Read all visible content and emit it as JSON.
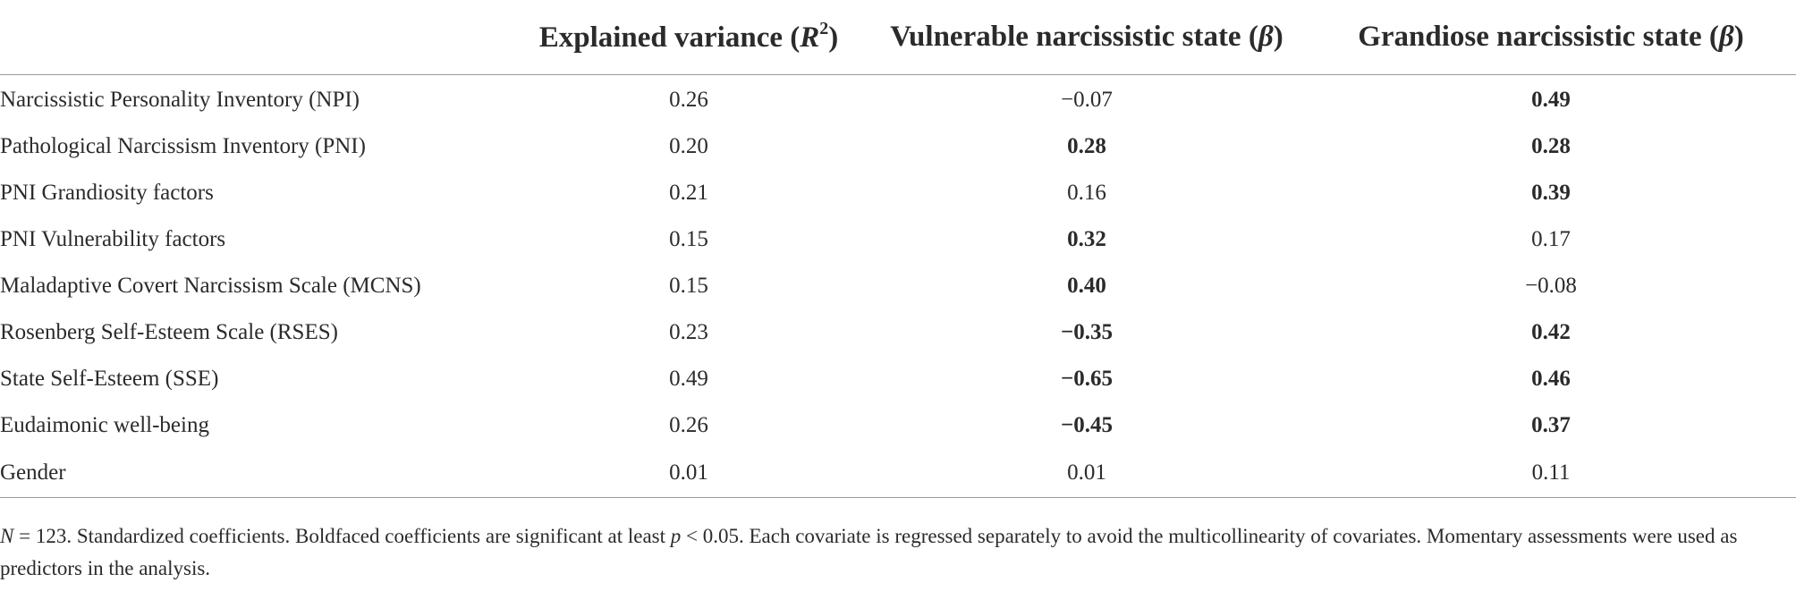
{
  "table": {
    "headers": {
      "col0": "",
      "col1_text": "Explained variance (",
      "col1_symbol": "R",
      "col1_sup": "2",
      "col1_close": ")",
      "col2_text": "Vulnerable narcissistic state (",
      "col2_symbol": "β",
      "col2_close": ")",
      "col3_text": "Grandiose narcissistic state (",
      "col3_symbol": "β",
      "col3_close": ")"
    },
    "rows": [
      {
        "label": "Narcissistic Personality Inventory (NPI)",
        "r2": "0.26",
        "vulnerable": "−0.07",
        "grandiose": "0.49"
      },
      {
        "label": "Pathological Narcissism Inventory (PNI)",
        "r2": "0.20",
        "vulnerable": "0.28",
        "grandiose": "0.28"
      },
      {
        "label": "PNI Grandiosity factors",
        "r2": "0.21",
        "vulnerable": "0.16",
        "grandiose": "0.39"
      },
      {
        "label": "PNI Vulnerability factors",
        "r2": "0.15",
        "vulnerable": "0.32",
        "grandiose": "0.17"
      },
      {
        "label": "Maladaptive Covert Narcissism Scale (MCNS)",
        "r2": "0.15",
        "vulnerable": "0.40",
        "grandiose": "−0.08"
      },
      {
        "label": "Rosenberg Self-Esteem Scale (RSES)",
        "r2": "0.23",
        "vulnerable": "−0.35",
        "grandiose": "0.42"
      },
      {
        "label": "State Self-Esteem (SSE)",
        "r2": "0.49",
        "vulnerable": "−0.65",
        "grandiose": "0.46"
      },
      {
        "label": "Eudaimonic well-being",
        "r2": "0.26",
        "vulnerable": "−0.45",
        "grandiose": "0.37"
      },
      {
        "label": "Gender",
        "r2": "0.01",
        "vulnerable": "0.01",
        "grandiose": "0.11"
      }
    ],
    "bold_cells": {
      "vulnerable": [
        false,
        true,
        false,
        true,
        true,
        true,
        true,
        true,
        false
      ],
      "grandiose": [
        true,
        true,
        true,
        false,
        false,
        true,
        true,
        true,
        false
      ]
    }
  },
  "note": {
    "n_symbol": "N",
    "n_value": " = 123. Standardized coefficients. Boldfaced coefficients are significant at least ",
    "p_symbol": "p",
    "p_rest": " < 0.05. Each covariate is regressed separately to avoid the multicollinearity of covariates. Momentary assessments were used as predictors in the analysis."
  }
}
